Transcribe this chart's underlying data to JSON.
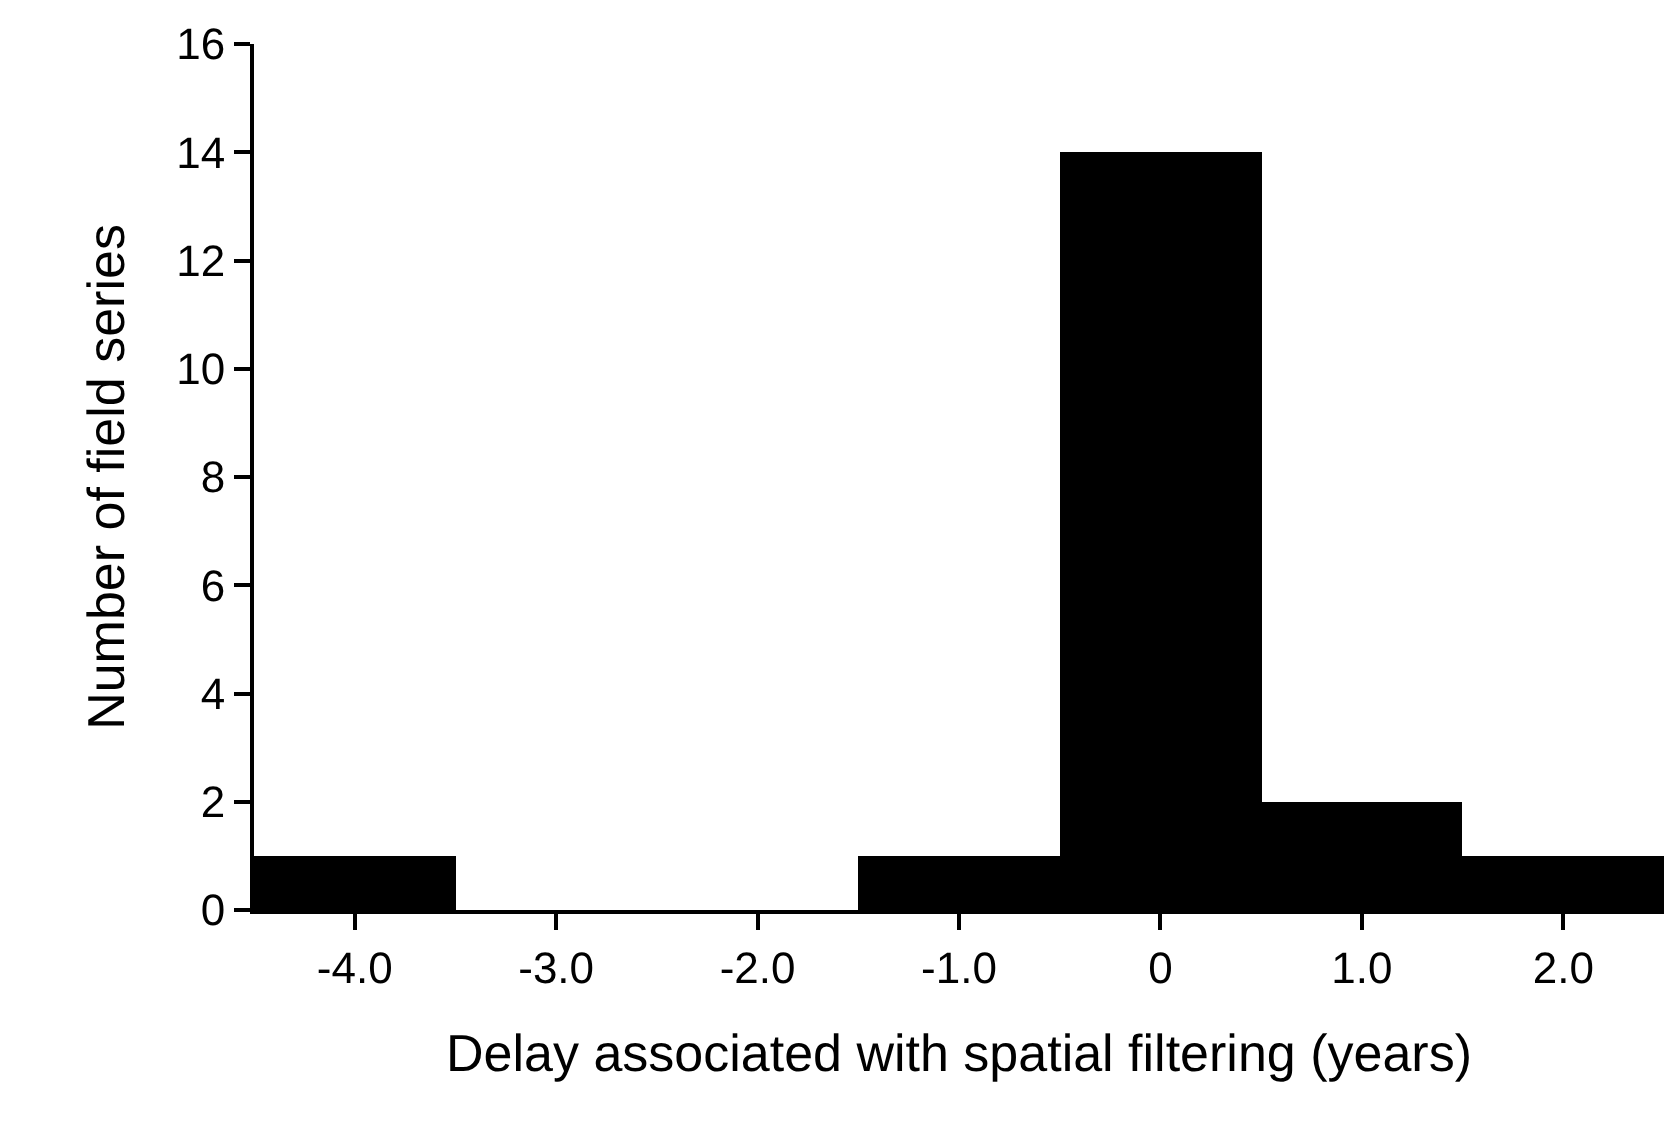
{
  "chart_data": {
    "type": "histogram",
    "xlabel": "Delay associated with spatial filtering (years)",
    "ylabel": "Number of field series",
    "bins": [
      -4.5,
      -3.5,
      -2.5,
      -1.5,
      -0.5,
      0.5,
      1.5,
      2.5
    ],
    "values": [
      1,
      0,
      0,
      1,
      14,
      2,
      1
    ],
    "color": "#000000",
    "xlim": [
      -4.5,
      2.5
    ],
    "xticks": [
      {
        "value": -4,
        "label": "-4.0"
      },
      {
        "value": -3,
        "label": "-3.0"
      },
      {
        "value": -2,
        "label": "-2.0"
      },
      {
        "value": -1,
        "label": "-1.0"
      },
      0,
      {
        "value": 1,
        "label": "1.0"
      },
      {
        "value": 2,
        "label": "2.0"
      }
    ],
    "ylim": [
      0,
      16
    ],
    "yticks": [
      0,
      2,
      4,
      6,
      8,
      10,
      12,
      14,
      16
    ]
  }
}
